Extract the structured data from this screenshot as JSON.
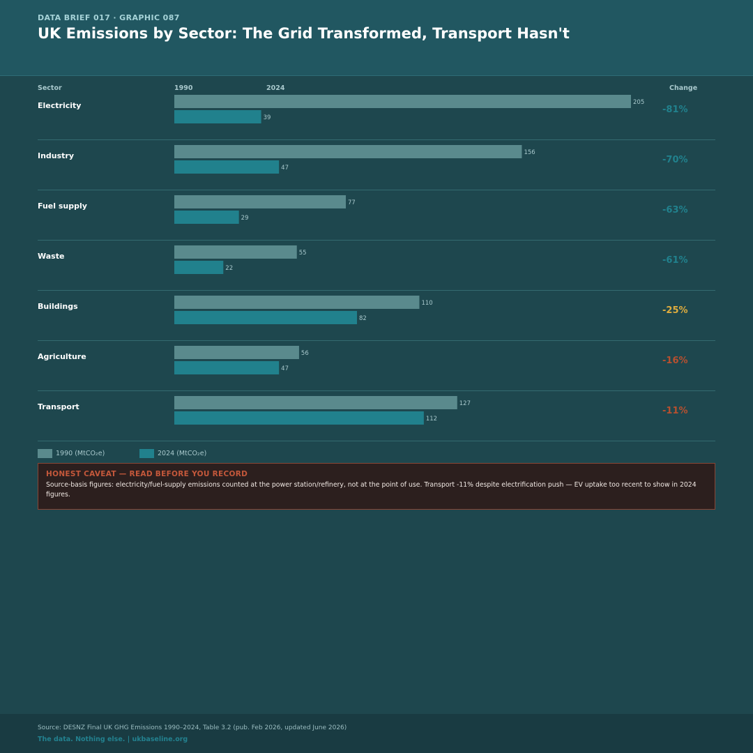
{
  "header": {
    "kicker": "DATA BRIEF 017 · GRAPHIC 087",
    "title": "UK Emissions by Sector: The Grid Transformed, Transport Hasn't"
  },
  "columns": {
    "sector": "Sector",
    "year1": "1990",
    "year2": "2024",
    "change": "Change"
  },
  "colors": {
    "bar_1990": "#5a8a8d",
    "bar_2024": "#21818d",
    "change_large": "#21818d",
    "change_moderate": "#e0ad3e",
    "change_small": "#b8502f",
    "row_divider": "#346b70"
  },
  "chart_data": {
    "type": "bar",
    "orientation": "horizontal",
    "categories": [
      "Electricity",
      "Industry",
      "Fuel supply",
      "Waste",
      "Buildings",
      "Agriculture",
      "Transport"
    ],
    "series": [
      {
        "name": "1990 (MtCO₂e)",
        "values": [
          205,
          156,
          77,
          55,
          110,
          56,
          127
        ]
      },
      {
        "name": "2024 (MtCO₂e)",
        "values": [
          39,
          47,
          29,
          22,
          82,
          47,
          112
        ]
      }
    ],
    "change_labels": [
      "-81%",
      "-70%",
      "-63%",
      "-61%",
      "-25%",
      "-16%",
      "-11%"
    ],
    "change_level": [
      "large",
      "large",
      "large",
      "large",
      "moderate",
      "small",
      "small"
    ],
    "xlim": [
      0,
      205
    ],
    "legend_position": "bottom-left"
  },
  "legend": {
    "item_1990": "1990 (MtCO₂e)",
    "item_2024": "2024 (MtCO₂e)"
  },
  "caveat": {
    "title": "HONEST CAVEAT — READ BEFORE YOU RECORD",
    "body": "Source-basis figures: electricity/fuel-supply emissions counted at the power station/refinery, not at the point of use. Transport -11% despite electrification push — EV uptake too recent to show in 2024 figures."
  },
  "footer": {
    "source": "Source: DESNZ Final UK GHG Emissions 1990–2024, Table 3.2 (pub. Feb 2026, updated June 2026)",
    "tagline": "The data. Nothing else. | ukbaseline.org"
  }
}
